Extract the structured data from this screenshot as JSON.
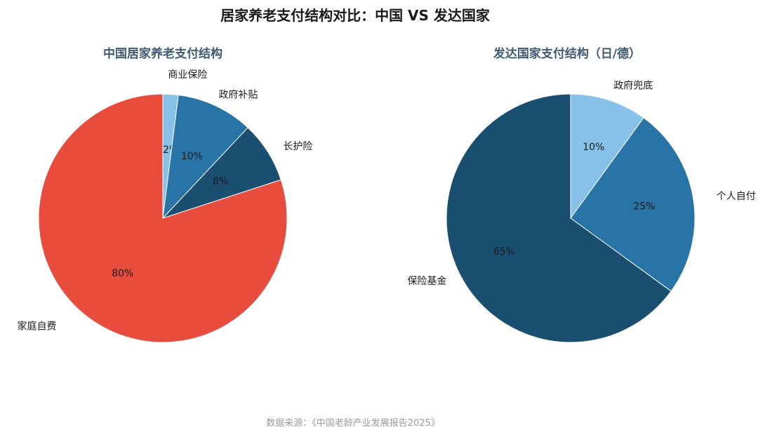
{
  "title": "居家养老支付结构对比：中国 VS 发达国家",
  "source": "数据来源：《中国老龄产业发展报告2025》",
  "colors": {
    "red": "#e74c3c",
    "light_blue": "#85c1e9",
    "mid_blue": "#2874a6",
    "dark_blue": "#1b4f72"
  },
  "chart_data": [
    {
      "type": "pie",
      "title": "中国居家养老支付结构",
      "slices": [
        {
          "label": "商业保险",
          "value": 2,
          "pct_label": "2%",
          "color": "#85c1e9"
        },
        {
          "label": "政府补贴",
          "value": 10,
          "pct_label": "10%",
          "color": "#2874a6"
        },
        {
          "label": "长护险",
          "value": 8,
          "pct_label": "8%",
          "color": "#1b4f72"
        },
        {
          "label": "家庭自费",
          "value": 80,
          "pct_label": "80%",
          "color": "#e74c3c"
        }
      ],
      "start": "top",
      "direction": "clockwise"
    },
    {
      "type": "pie",
      "title": "发达国家支付结构（日/德）",
      "slices": [
        {
          "label": "政府兜底",
          "value": 10,
          "pct_label": "10%",
          "color": "#85c1e9"
        },
        {
          "label": "个人自付",
          "value": 25,
          "pct_label": "25%",
          "color": "#2874a6"
        },
        {
          "label": "保险基金",
          "value": 65,
          "pct_label": "65%",
          "color": "#1b4f72"
        }
      ],
      "start": "top",
      "direction": "clockwise"
    }
  ]
}
